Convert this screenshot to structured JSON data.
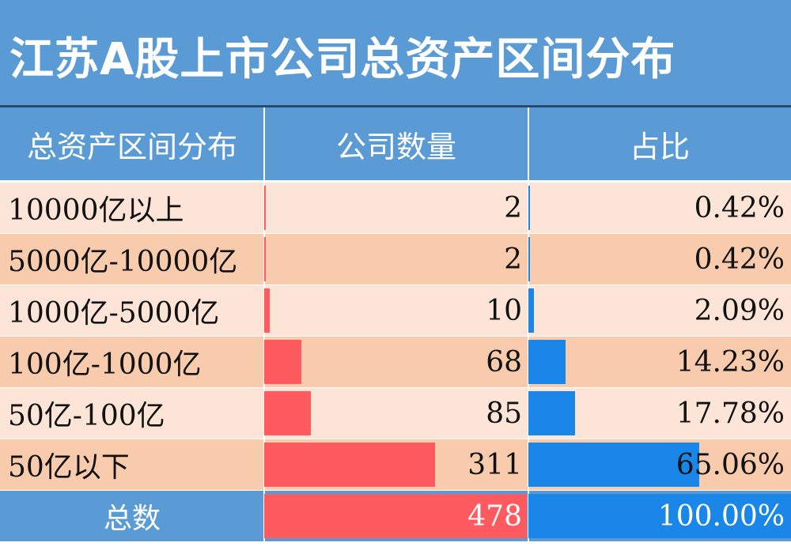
{
  "title": "江苏A股上市公司总资产区间分布",
  "chart_data": {
    "type": "table",
    "columns": [
      "总资产区间分布",
      "公司数量",
      "占比"
    ],
    "rows": [
      {
        "range": "10000亿以上",
        "count": 2,
        "share": "0.42%",
        "share_value": 0.42
      },
      {
        "range": "5000亿-10000亿",
        "count": 2,
        "share": "0.42%",
        "share_value": 0.42
      },
      {
        "range": "1000亿-5000亿",
        "count": 10,
        "share": "2.09%",
        "share_value": 2.09
      },
      {
        "range": "100亿-1000亿",
        "count": 68,
        "share": "14.23%",
        "share_value": 14.23
      },
      {
        "range": "50亿-100亿",
        "count": 85,
        "share": "17.78%",
        "share_value": 17.78
      },
      {
        "range": "50亿以下",
        "count": 311,
        "share": "65.06%",
        "share_value": 65.06
      }
    ],
    "total": {
      "label": "总数",
      "count": 478,
      "share": "100.00%",
      "share_value": 100.0
    }
  },
  "colors": {
    "header": "#5b9bd5",
    "row_light": "#fce4d6",
    "row_dark": "#f8cbad",
    "count_bar": "#ff5a5f",
    "share_bar": "#1a86e8",
    "total_bg": "#5b9bd5"
  }
}
